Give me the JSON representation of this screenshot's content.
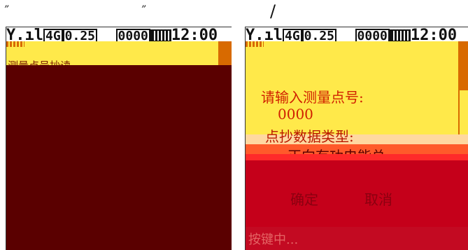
{
  "decor": {
    "quote_open": "”",
    "quote_close": "”",
    "slash": "/"
  },
  "status_bar": {
    "network": "4G",
    "value": "0.25",
    "code": "0000",
    "time": "12:00"
  },
  "left_screen": {
    "title": "测量点号抄读"
  },
  "dialog": {
    "prompt": "请输入测量点号:",
    "point_value": "0000",
    "type_label": "点抄数据类型:",
    "type_value": "正向有功电能总",
    "confirm_label": "确定",
    "cancel_label": "取消",
    "footer": "按键中..."
  },
  "colors": {
    "yellow": "#ffe94a",
    "dark_red": "#5a0000",
    "red": "#c5001a",
    "orange": "#d86a00"
  }
}
